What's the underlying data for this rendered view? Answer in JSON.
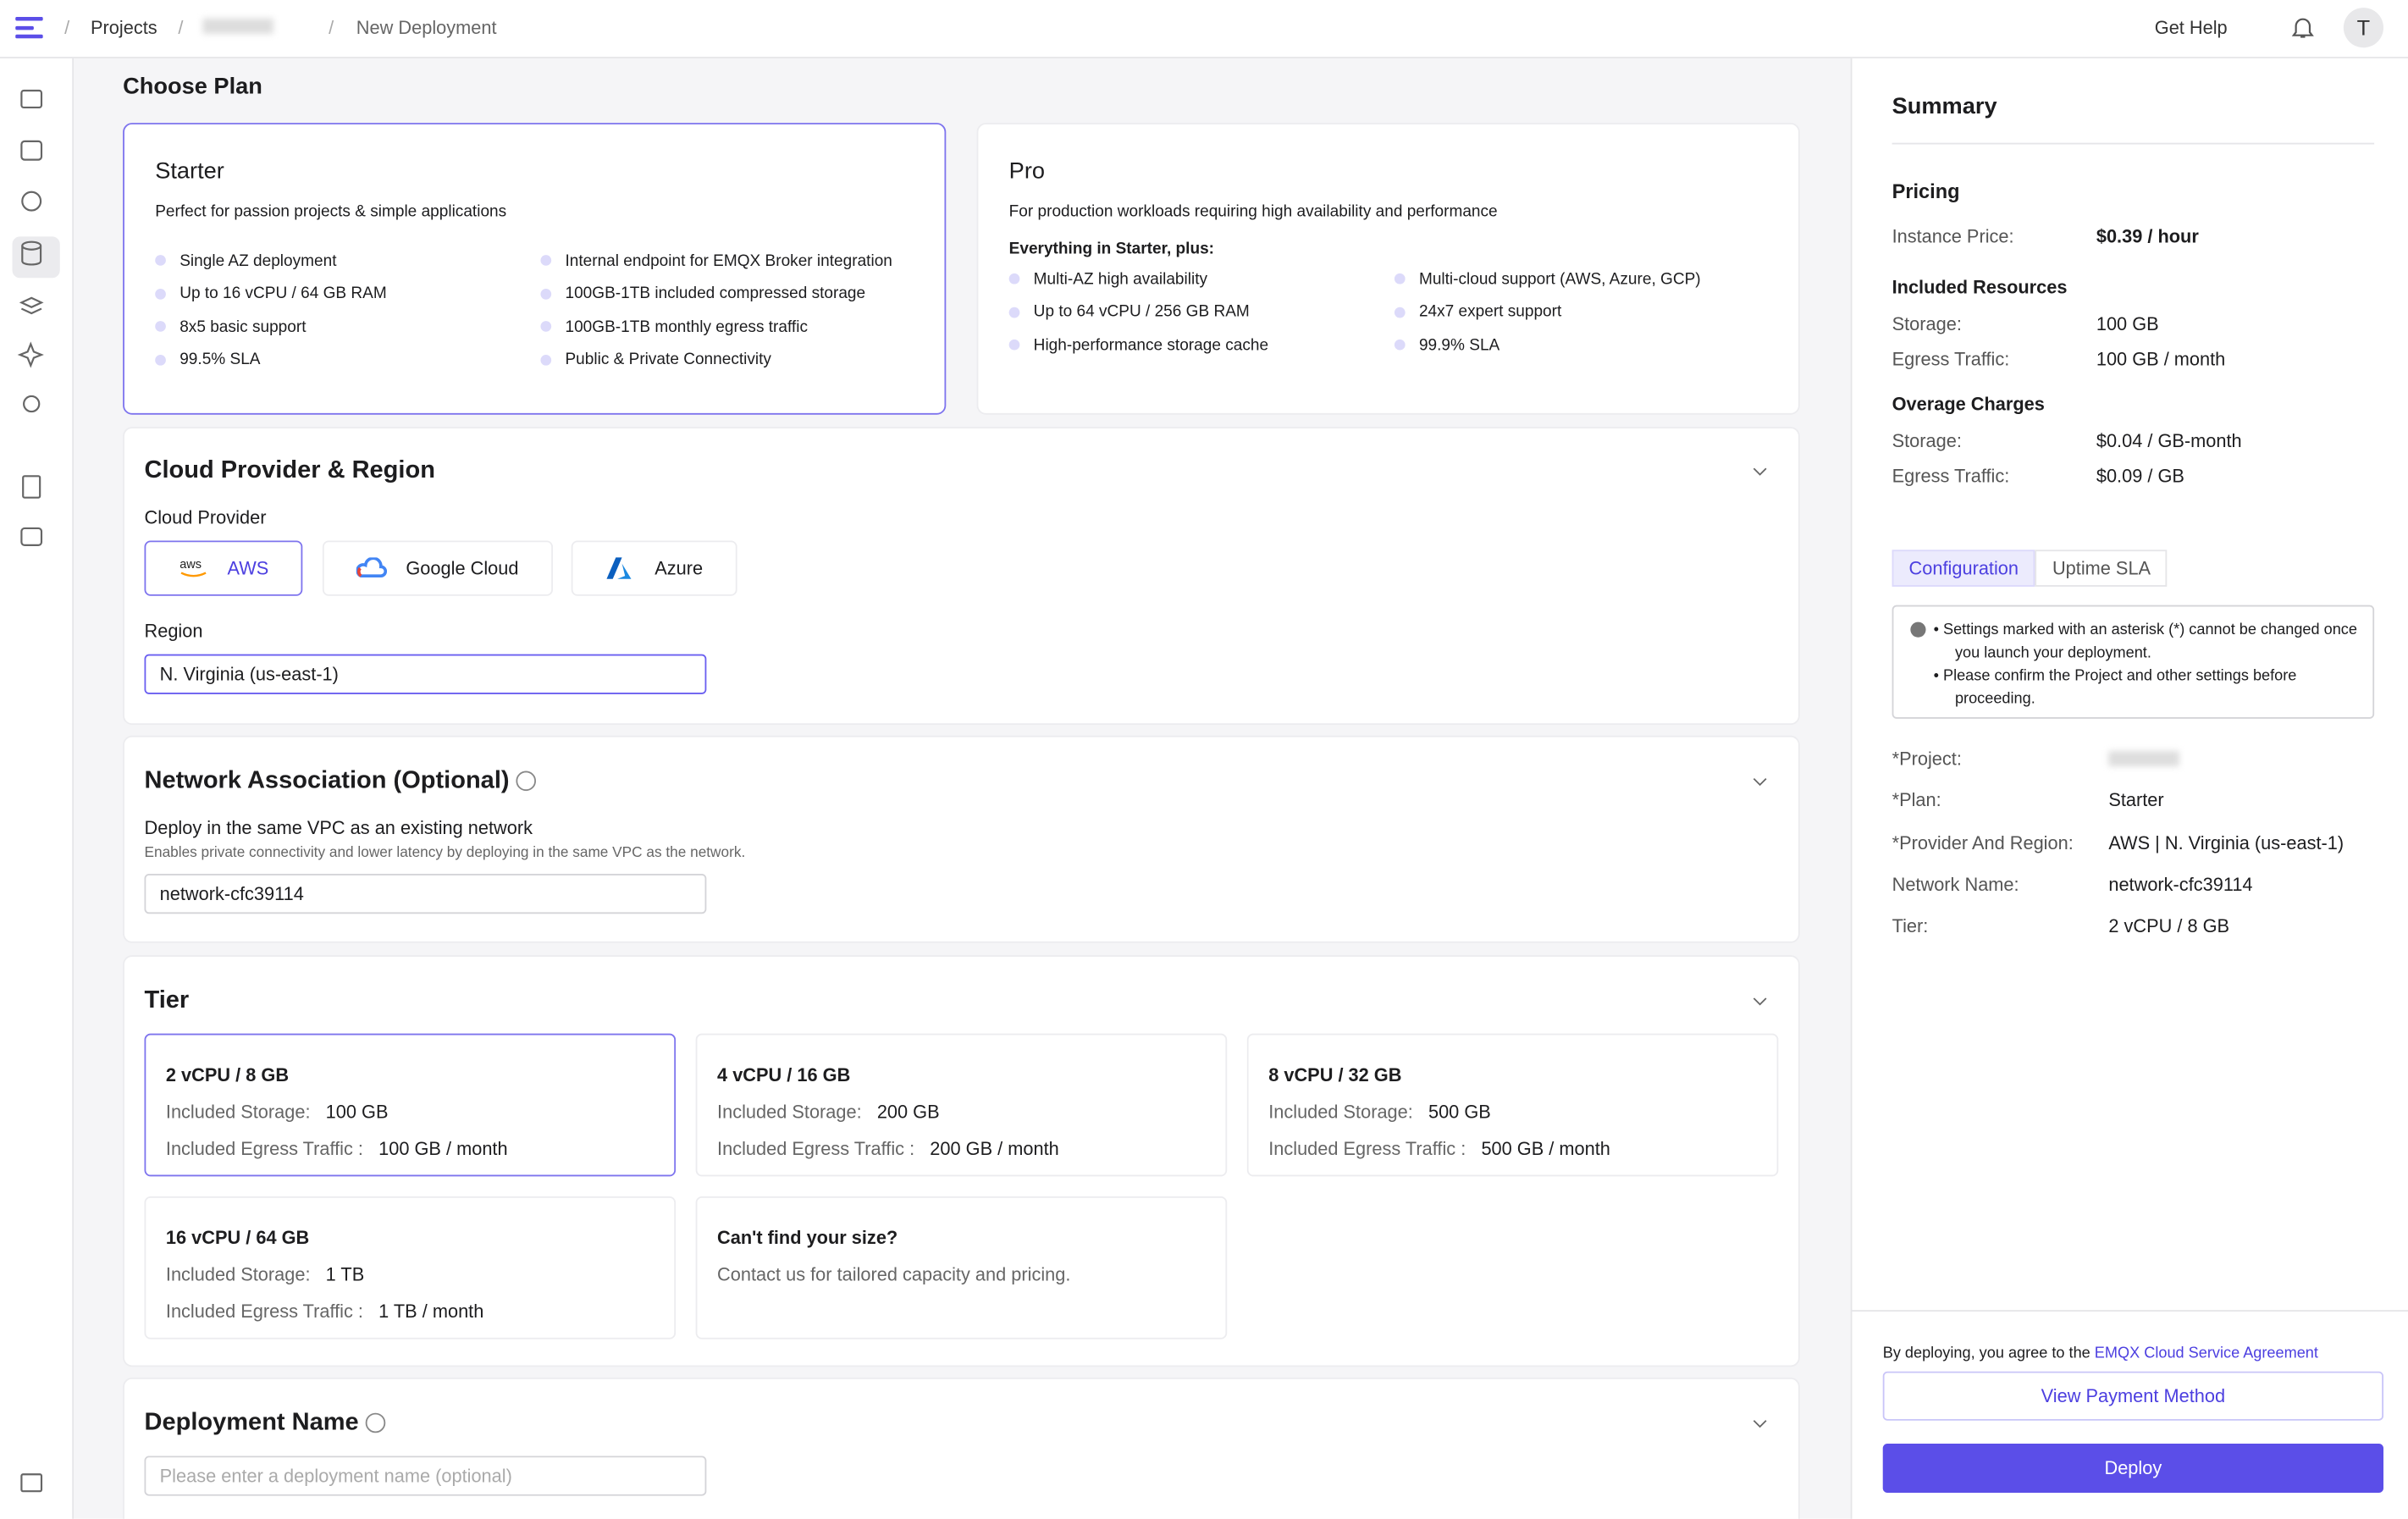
{
  "nav": {
    "breadcrumbs": [
      "Projects",
      "New Deployment"
    ],
    "help": "Get Help",
    "avatar": "T"
  },
  "main": {
    "title": "Choose Plan",
    "plans": [
      {
        "name": "Starter",
        "desc": "Perfect for passion projects & simple applications",
        "features": [
          "Single AZ deployment",
          "Up to 16 vCPU / 64 GB RAM",
          "8x5 basic support",
          "99.5% SLA",
          "Internal endpoint for EMQX Broker integration",
          "100GB-1TB included compressed storage",
          "100GB-1TB monthly egress traffic",
          "Public & Private Connectivity"
        ]
      },
      {
        "name": "Pro",
        "desc": "For production workloads requiring high availability and performance",
        "features_heading": "Everything in Starter, plus:",
        "features": [
          "Multi-AZ high availability",
          "Up to 64 vCPU / 256 GB RAM",
          "High-performance storage cache",
          "Multi-cloud support (AWS, Azure, GCP)",
          "24x7 expert support",
          "99.9% SLA"
        ]
      }
    ],
    "cloud": {
      "title": "Cloud Provider & Region",
      "provider_label": "Cloud Provider",
      "providers": [
        "AWS",
        "Google Cloud",
        "Azure"
      ],
      "region_label": "Region",
      "region": "N. Virginia (us-east-1)"
    },
    "network": {
      "title": "Network Association (Optional)",
      "label": "Deploy in the same VPC as an existing network",
      "hint": "Enables private connectivity and lower latency by deploying in the same VPC as the network.",
      "value": "network-cfc39114"
    },
    "tier": {
      "title": "Tier",
      "storage_label": "Included Storage:",
      "egress_label": "Included Egress Traffic :",
      "options": [
        {
          "name": "2 vCPU / 8 GB",
          "storage": "100 GB",
          "egress": "100 GB / month"
        },
        {
          "name": "4 vCPU / 16 GB",
          "storage": "200 GB",
          "egress": "200 GB / month"
        },
        {
          "name": "8 vCPU / 32 GB",
          "storage": "500 GB",
          "egress": "500 GB / month"
        },
        {
          "name": "16 vCPU / 64 GB",
          "storage": "1 TB",
          "egress": "1 TB / month"
        }
      ],
      "custom": {
        "title": "Can't find your size?",
        "text": "Contact us for tailored capacity and pricing."
      }
    },
    "deployment_name": {
      "title": "Deployment Name",
      "placeholder": "Please enter a deployment name (optional)"
    }
  },
  "summary": {
    "title": "Summary",
    "groups": [
      {
        "title": "Pricing",
        "rows": [
          {
            "label": "Instance Price:",
            "value": "$0.39 / hour"
          }
        ]
      },
      {
        "title": "Included Resources",
        "rows": [
          {
            "label": "Storage:",
            "value": "100 GB"
          },
          {
            "label": "Egress Traffic:",
            "value": "100 GB / month"
          }
        ]
      },
      {
        "title": "Overage Charges",
        "rows": [
          {
            "label": "Storage:",
            "value": "$0.04 / GB-month"
          },
          {
            "label": "Egress Traffic:",
            "value": "$0.09 / GB"
          }
        ]
      }
    ],
    "tabs": [
      "Configuration",
      "Uptime SLA"
    ],
    "notes": [
      "Settings marked with an asterisk (*) cannot be changed once you launch your deployment.",
      "Please confirm the Project and other settings before proceeding."
    ],
    "config": [
      {
        "label": "*Project:"
      },
      {
        "label": "*Plan:",
        "value": "Starter"
      },
      {
        "label": "*Provider And Region:",
        "value": "AWS | N. Virginia (us-east-1)"
      },
      {
        "label": "Network Name:",
        "value": "network-cfc39114"
      },
      {
        "label": "Tier:",
        "value": "2 vCPU / 8 GB"
      }
    ],
    "agreement": "By deploying, you agree to the",
    "agreement_link": "EMQX Cloud Service Agreement",
    "payment": "View Payment Method",
    "deploy": "Deploy"
  }
}
